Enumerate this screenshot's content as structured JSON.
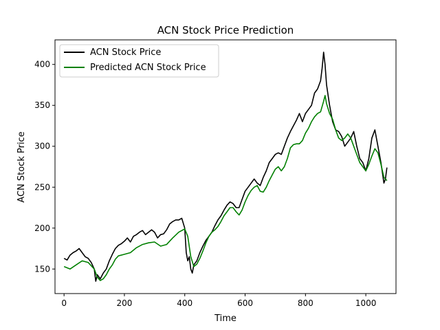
{
  "chart_data": {
    "type": "line",
    "title": "ACN Stock Price Prediction",
    "xlabel": "Time",
    "ylabel": "ACN Stock Price",
    "xlim": [
      -30,
      1100
    ],
    "ylim": [
      120,
      430
    ],
    "xticks": [
      0,
      200,
      400,
      600,
      800,
      1000
    ],
    "yticks": [
      150,
      200,
      250,
      300,
      350,
      400
    ],
    "grid": false,
    "legend_position": "upper left",
    "series": [
      {
        "name": "ACN Stock Price",
        "color": "#000000",
        "points": [
          [
            0,
            163
          ],
          [
            10,
            161
          ],
          [
            20,
            167
          ],
          [
            30,
            170
          ],
          [
            40,
            172
          ],
          [
            50,
            175
          ],
          [
            60,
            170
          ],
          [
            70,
            165
          ],
          [
            80,
            163
          ],
          [
            90,
            158
          ],
          [
            100,
            150
          ],
          [
            105,
            135
          ],
          [
            110,
            143
          ],
          [
            120,
            138
          ],
          [
            130,
            145
          ],
          [
            140,
            150
          ],
          [
            150,
            160
          ],
          [
            160,
            168
          ],
          [
            170,
            175
          ],
          [
            180,
            179
          ],
          [
            190,
            181
          ],
          [
            200,
            184
          ],
          [
            210,
            188
          ],
          [
            220,
            183
          ],
          [
            230,
            190
          ],
          [
            240,
            192
          ],
          [
            250,
            195
          ],
          [
            260,
            197
          ],
          [
            270,
            192
          ],
          [
            280,
            195
          ],
          [
            290,
            198
          ],
          [
            300,
            195
          ],
          [
            310,
            188
          ],
          [
            320,
            192
          ],
          [
            330,
            193
          ],
          [
            340,
            198
          ],
          [
            350,
            205
          ],
          [
            360,
            208
          ],
          [
            370,
            210
          ],
          [
            380,
            210
          ],
          [
            390,
            212
          ],
          [
            400,
            200
          ],
          [
            405,
            170
          ],
          [
            410,
            160
          ],
          [
            415,
            165
          ],
          [
            420,
            150
          ],
          [
            425,
            145
          ],
          [
            430,
            155
          ],
          [
            440,
            160
          ],
          [
            450,
            170
          ],
          [
            460,
            178
          ],
          [
            470,
            185
          ],
          [
            480,
            190
          ],
          [
            490,
            195
          ],
          [
            500,
            203
          ],
          [
            510,
            210
          ],
          [
            520,
            215
          ],
          [
            530,
            222
          ],
          [
            540,
            228
          ],
          [
            550,
            232
          ],
          [
            560,
            230
          ],
          [
            570,
            225
          ],
          [
            580,
            225
          ],
          [
            590,
            235
          ],
          [
            600,
            245
          ],
          [
            610,
            250
          ],
          [
            620,
            255
          ],
          [
            630,
            260
          ],
          [
            640,
            255
          ],
          [
            650,
            252
          ],
          [
            660,
            262
          ],
          [
            670,
            270
          ],
          [
            680,
            280
          ],
          [
            690,
            285
          ],
          [
            700,
            290
          ],
          [
            710,
            292
          ],
          [
            720,
            290
          ],
          [
            730,
            300
          ],
          [
            740,
            310
          ],
          [
            750,
            318
          ],
          [
            760,
            325
          ],
          [
            770,
            332
          ],
          [
            780,
            340
          ],
          [
            790,
            330
          ],
          [
            800,
            340
          ],
          [
            810,
            345
          ],
          [
            820,
            350
          ],
          [
            830,
            365
          ],
          [
            840,
            370
          ],
          [
            850,
            380
          ],
          [
            855,
            395
          ],
          [
            860,
            415
          ],
          [
            865,
            400
          ],
          [
            870,
            375
          ],
          [
            880,
            350
          ],
          [
            890,
            330
          ],
          [
            900,
            320
          ],
          [
            910,
            318
          ],
          [
            920,
            312
          ],
          [
            930,
            300
          ],
          [
            940,
            305
          ],
          [
            950,
            310
          ],
          [
            960,
            318
          ],
          [
            970,
            300
          ],
          [
            980,
            285
          ],
          [
            990,
            280
          ],
          [
            1000,
            270
          ],
          [
            1010,
            285
          ],
          [
            1020,
            310
          ],
          [
            1030,
            320
          ],
          [
            1040,
            300
          ],
          [
            1050,
            280
          ],
          [
            1060,
            255
          ],
          [
            1065,
            260
          ],
          [
            1070,
            274
          ]
        ]
      },
      {
        "name": "Predicted ACN Stock Price",
        "color": "#008000",
        "points": [
          [
            0,
            153
          ],
          [
            20,
            150
          ],
          [
            40,
            155
          ],
          [
            60,
            160
          ],
          [
            80,
            158
          ],
          [
            100,
            150
          ],
          [
            110,
            140
          ],
          [
            120,
            136
          ],
          [
            130,
            138
          ],
          [
            140,
            143
          ],
          [
            150,
            150
          ],
          [
            160,
            155
          ],
          [
            170,
            162
          ],
          [
            180,
            166
          ],
          [
            200,
            168
          ],
          [
            220,
            170
          ],
          [
            240,
            176
          ],
          [
            260,
            180
          ],
          [
            280,
            182
          ],
          [
            300,
            183
          ],
          [
            320,
            178
          ],
          [
            340,
            180
          ],
          [
            360,
            188
          ],
          [
            380,
            195
          ],
          [
            400,
            199
          ],
          [
            410,
            190
          ],
          [
            420,
            165
          ],
          [
            430,
            153
          ],
          [
            440,
            156
          ],
          [
            450,
            163
          ],
          [
            460,
            172
          ],
          [
            470,
            182
          ],
          [
            480,
            190
          ],
          [
            490,
            195
          ],
          [
            500,
            198
          ],
          [
            510,
            202
          ],
          [
            520,
            208
          ],
          [
            530,
            215
          ],
          [
            540,
            220
          ],
          [
            550,
            225
          ],
          [
            560,
            225
          ],
          [
            570,
            220
          ],
          [
            580,
            216
          ],
          [
            590,
            222
          ],
          [
            600,
            232
          ],
          [
            610,
            240
          ],
          [
            620,
            246
          ],
          [
            630,
            250
          ],
          [
            640,
            252
          ],
          [
            650,
            245
          ],
          [
            660,
            244
          ],
          [
            670,
            250
          ],
          [
            680,
            258
          ],
          [
            690,
            265
          ],
          [
            700,
            272
          ],
          [
            710,
            275
          ],
          [
            720,
            270
          ],
          [
            730,
            275
          ],
          [
            740,
            285
          ],
          [
            750,
            298
          ],
          [
            760,
            302
          ],
          [
            770,
            303
          ],
          [
            780,
            303
          ],
          [
            790,
            307
          ],
          [
            800,
            316
          ],
          [
            810,
            322
          ],
          [
            820,
            330
          ],
          [
            830,
            336
          ],
          [
            840,
            340
          ],
          [
            850,
            342
          ],
          [
            860,
            355
          ],
          [
            865,
            362
          ],
          [
            870,
            352
          ],
          [
            880,
            340
          ],
          [
            890,
            333
          ],
          [
            900,
            320
          ],
          [
            910,
            310
          ],
          [
            920,
            307
          ],
          [
            930,
            310
          ],
          [
            940,
            315
          ],
          [
            950,
            310
          ],
          [
            960,
            300
          ],
          [
            970,
            290
          ],
          [
            980,
            280
          ],
          [
            990,
            275
          ],
          [
            1000,
            270
          ],
          [
            1010,
            278
          ],
          [
            1020,
            288
          ],
          [
            1030,
            297
          ],
          [
            1040,
            292
          ],
          [
            1050,
            278
          ],
          [
            1060,
            262
          ],
          [
            1070,
            258
          ]
        ]
      }
    ]
  }
}
